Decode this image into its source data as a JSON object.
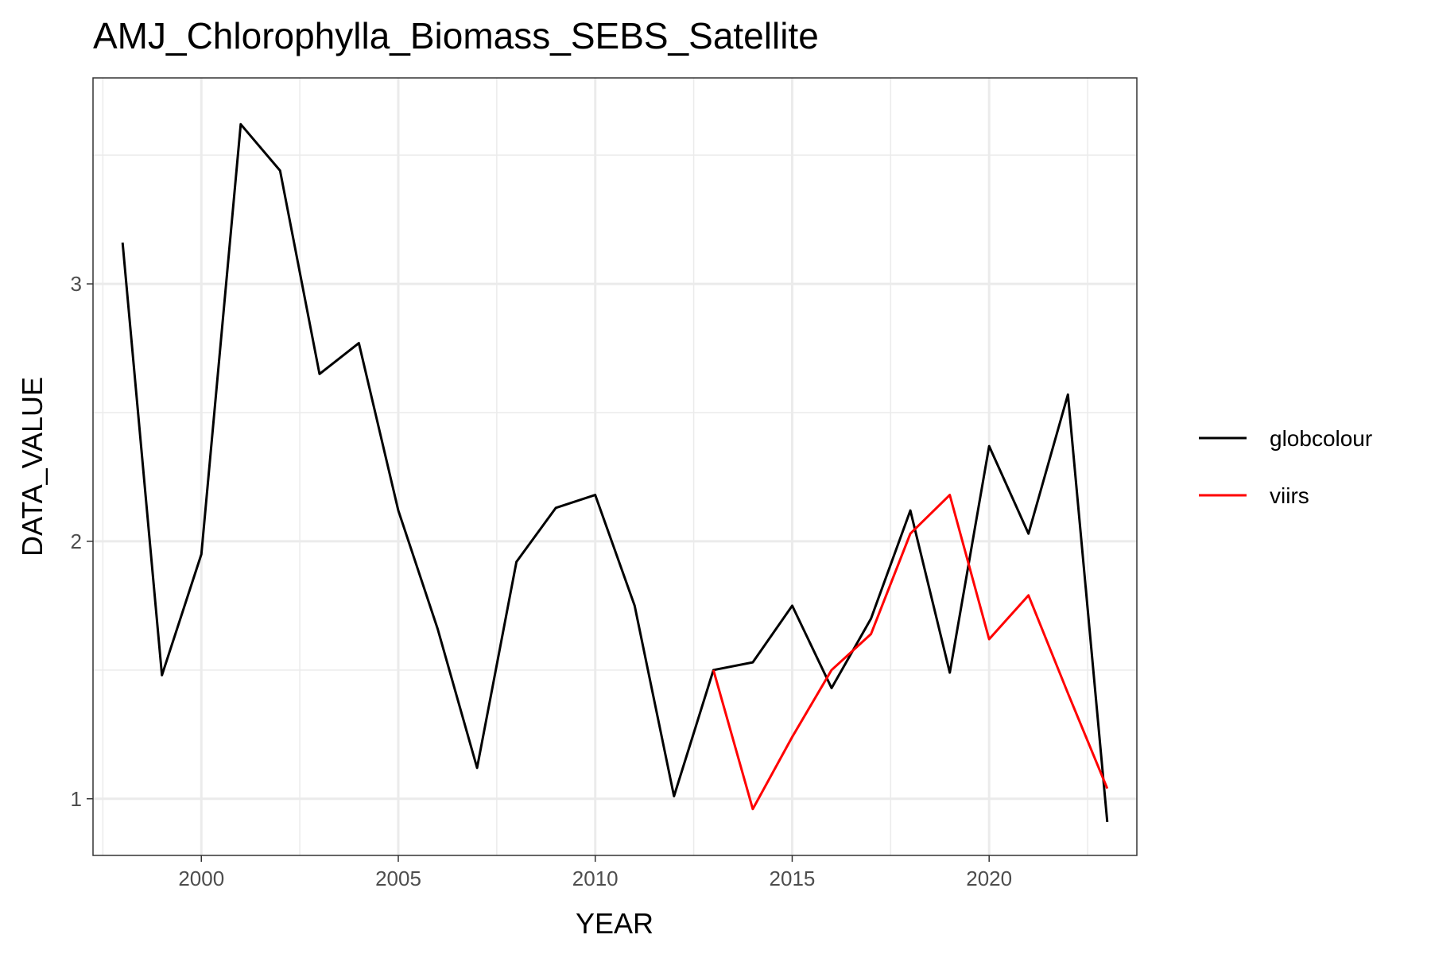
{
  "chart_data": {
    "type": "line",
    "title": "AMJ_Chlorophylla_Biomass_SEBS_Satellite",
    "xlabel": "YEAR",
    "ylabel": "DATA_VALUE",
    "xlim": [
      1997.25,
      2023.75
    ],
    "ylim": [
      0.78,
      3.8
    ],
    "x_ticks": [
      2000,
      2005,
      2010,
      2015,
      2020
    ],
    "x_tick_labels": [
      "2000",
      "2005",
      "2010",
      "2015",
      "2020"
    ],
    "x_minor_ticks": [
      1997.5,
      2002.5,
      2007.5,
      2012.5,
      2017.5,
      2022.5
    ],
    "y_ticks": [
      1,
      2,
      3
    ],
    "y_tick_labels": [
      "1",
      "2",
      "3"
    ],
    "y_minor_ticks": [
      1.5,
      2.5,
      3.5
    ],
    "grid": true,
    "legend_position": "right",
    "series": [
      {
        "name": "globcolour",
        "color": "#000000",
        "x": [
          1998,
          1999,
          2000,
          2001,
          2002,
          2003,
          2004,
          2005,
          2006,
          2007,
          2008,
          2009,
          2010,
          2011,
          2012,
          2013,
          2014,
          2015,
          2016,
          2017,
          2018,
          2019,
          2020,
          2021,
          2022,
          2023
        ],
        "y": [
          3.16,
          1.48,
          1.95,
          3.62,
          3.44,
          2.65,
          2.77,
          2.12,
          1.66,
          1.12,
          1.92,
          2.13,
          2.18,
          1.75,
          1.01,
          1.5,
          1.53,
          1.75,
          1.43,
          1.7,
          2.12,
          1.49,
          2.37,
          2.03,
          2.57,
          0.91
        ]
      },
      {
        "name": "viirs",
        "color": "#ff0000",
        "x": [
          2013,
          2014,
          2015,
          2016,
          2017,
          2018,
          2019,
          2020,
          2021,
          2022,
          2023
        ],
        "y": [
          1.5,
          0.96,
          1.24,
          1.5,
          1.64,
          2.03,
          2.18,
          1.62,
          1.79,
          1.41,
          1.04
        ]
      }
    ]
  }
}
